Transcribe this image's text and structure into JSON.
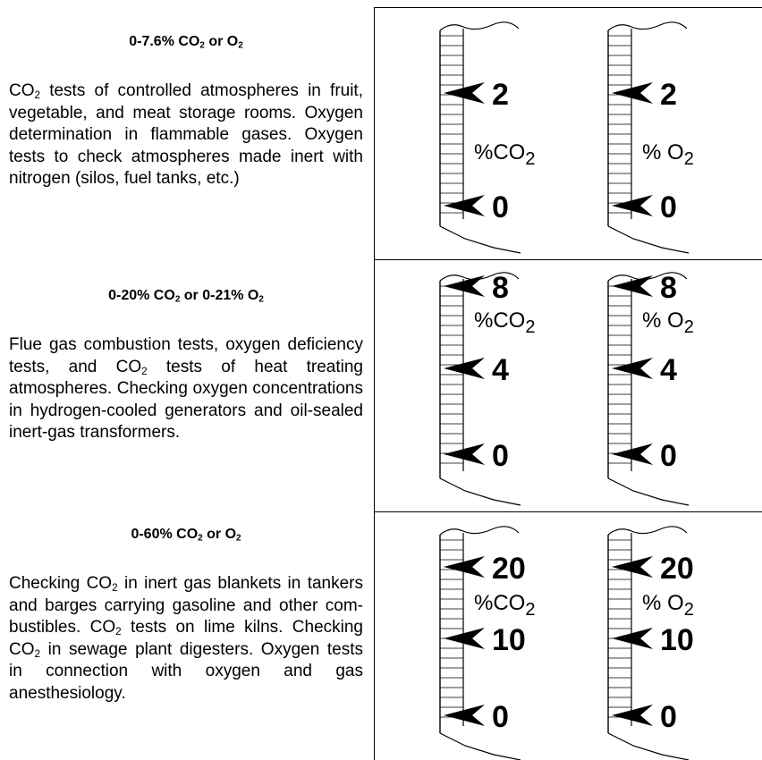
{
  "sections": [
    {
      "heading_prefix": "0-7.6% CO",
      "heading_sub1": "2",
      "heading_mid": " or O",
      "heading_sub2": "2",
      "heading_tail": "",
      "desc_runs": [
        {
          "t": "CO"
        },
        {
          "s": "2"
        },
        {
          "t": " tests of controlled atmospheres in fruit, vegetable, and meat storage rooms.   Oxygen determination in flammable gases.   Oxygen tests to check atmospheres made inert with nitrogen (silos, fuel tanks, etc.)"
        }
      ],
      "gauges": [
        {
          "unit_main": "%CO",
          "unit_sub": "2",
          "marks": [
            "2",
            "0"
          ]
        },
        {
          "unit_main": "% O",
          "unit_sub": "2",
          "marks": [
            "2",
            "0"
          ]
        }
      ]
    },
    {
      "heading_prefix": "0-20% CO",
      "heading_sub1": "2",
      "heading_mid": "  or 0-21% O",
      "heading_sub2": "2",
      "heading_tail": "",
      "desc_runs": [
        {
          "t": "Flue gas combustion tests, oxygen deficiency tests, and CO"
        },
        {
          "s": "2"
        },
        {
          "t": " tests of heat treating atmospheres.       Checking oxygen concentrations in hydrogen-cooled generators and oil-sealed inert-gas transformers."
        }
      ],
      "gauges": [
        {
          "unit_main": "%CO",
          "unit_sub": "2",
          "marks": [
            "8",
            "4",
            "0"
          ]
        },
        {
          "unit_main": "% O",
          "unit_sub": "2",
          "marks": [
            "8",
            "4",
            "0"
          ]
        }
      ]
    },
    {
      "heading_prefix": "0-60% CO",
      "heading_sub1": "2",
      "heading_mid": " or O",
      "heading_sub2": "2",
      "heading_tail": "",
      "desc_runs": [
        {
          "t": "Checking CO"
        },
        {
          "s": "2"
        },
        {
          "t": " in inert gas blankets in tankers and barges carrying gasoline and other com-bustibles.  CO"
        },
        {
          "s": "2"
        },
        {
          "t": " tests on lime kilns.   Checking CO"
        },
        {
          "s": "2"
        },
        {
          "t": " in sewage plant digesters.    Oxygen tests in connection with oxygen and gas anesthesiology."
        }
      ],
      "gauges": [
        {
          "unit_main": "%CO",
          "unit_sub": "2",
          "marks": [
            "20",
            "10",
            "0"
          ]
        },
        {
          "unit_main": "% O",
          "unit_sub": "2",
          "marks": [
            "20",
            "10",
            "0"
          ]
        }
      ]
    }
  ]
}
